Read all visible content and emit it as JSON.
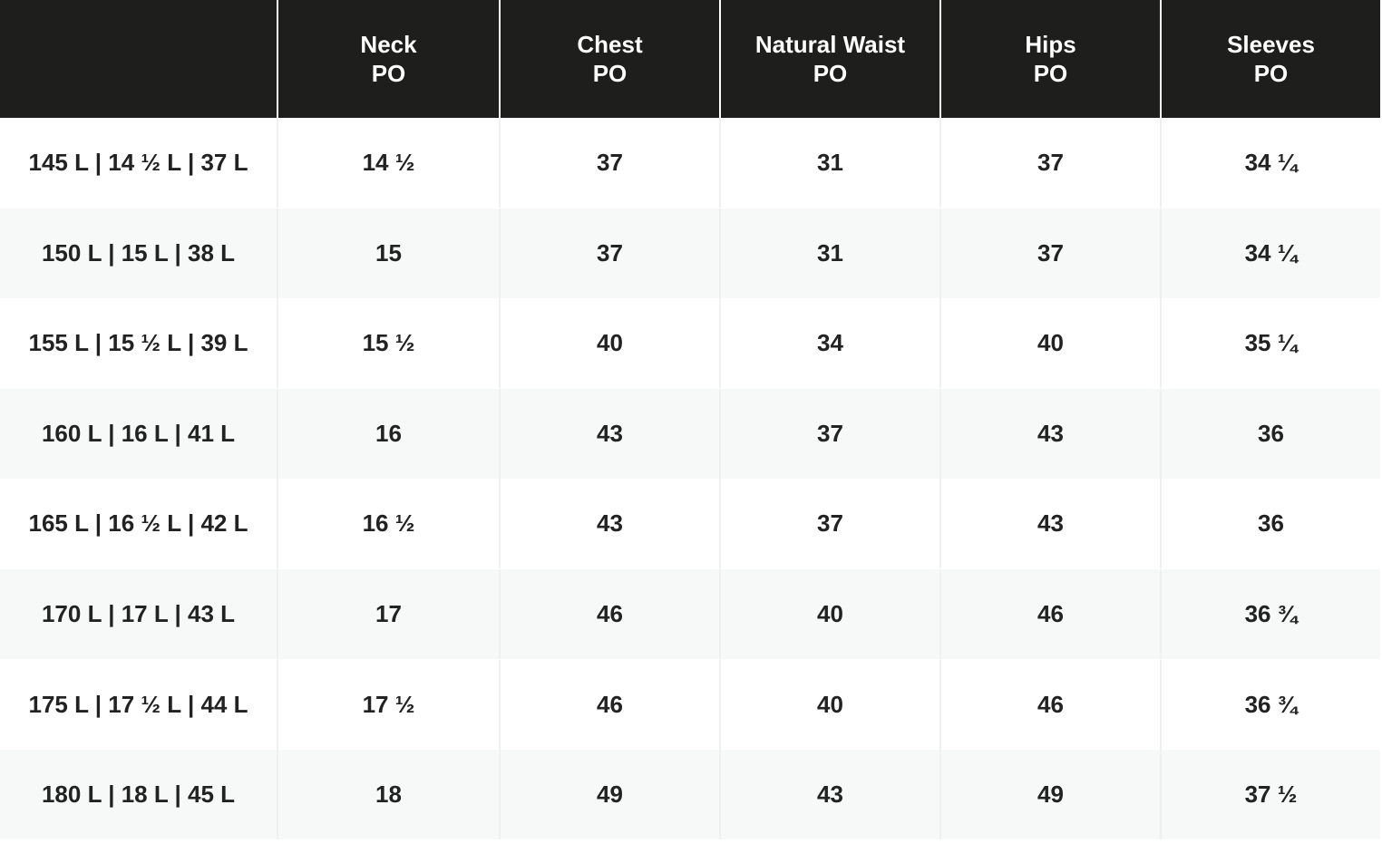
{
  "table": {
    "columns": [
      {
        "name": "Neck",
        "unit": "PO"
      },
      {
        "name": "Chest",
        "unit": "PO"
      },
      {
        "name": "Natural Waist",
        "unit": "PO"
      },
      {
        "name": "Hips",
        "unit": "PO"
      },
      {
        "name": "Sleeves",
        "unit": "PO"
      }
    ],
    "rows": [
      [
        "145 L | 14 ½ L | 37 L",
        "14 ½",
        "37",
        "31",
        "37",
        "34 ¼"
      ],
      [
        "150 L | 15 L | 38 L",
        "15",
        "37",
        "31",
        "37",
        "34 ¼"
      ],
      [
        "155 L | 15 ½ L | 39 L",
        "15 ½",
        "40",
        "34",
        "40",
        "35 ¼"
      ],
      [
        "160 L | 16 L | 41 L",
        "16",
        "43",
        "37",
        "43",
        "36"
      ],
      [
        "165 L | 16 ½ L | 42 L",
        "16 ½",
        "43",
        "37",
        "43",
        "36"
      ],
      [
        "170 L | 17 L | 43 L",
        "17",
        "46",
        "40",
        "46",
        "36 ¾"
      ],
      [
        "175 L | 17 ½ L | 44 L",
        "17 ½",
        "46",
        "40",
        "46",
        "36 ¾"
      ],
      [
        "180 L | 18 L | 45 L",
        "18",
        "49",
        "43",
        "49",
        "37 ½"
      ]
    ]
  }
}
